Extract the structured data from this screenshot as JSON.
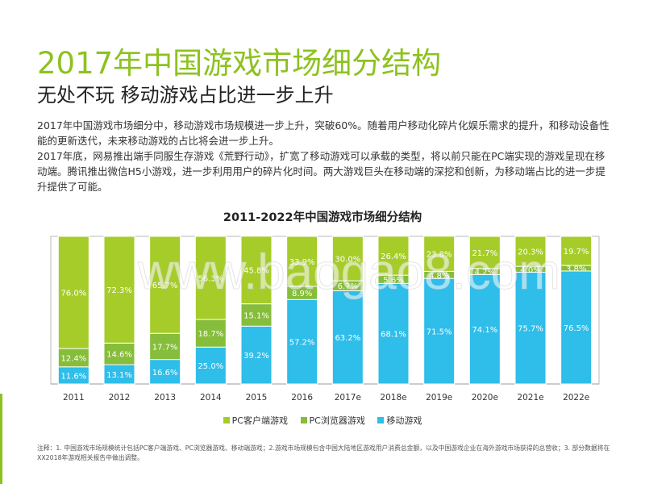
{
  "title": "2017年中国游戏市场细分结构",
  "subtitle": "无处不玩 移动游戏占比进一步上升",
  "paragraph1": "2017年中国游戏市场细分中，移动游戏市场规模进一步上升，突破60%。随着用户移动化碎片化娱乐需求的提升，和移动设备性能的更新迭代，未来移动游戏的占比将会进一步上升。",
  "paragraph2": "2017年底，网易推出端手同服生存游戏《荒野行动》，扩宽了移动游戏可以承载的类型，将以前只能在PC端实现的游戏呈现在移动端。腾讯推出微信H5小游戏，进一步利用用户的碎片化时间。两大游戏巨头在移动端的深挖和创新，为移动端占比的进一步提升提供了可能。",
  "note": "注释：1. 中国游戏市场规模统计包括PC客户端游戏、PC浏览器游戏、移动端游戏；2.游戏市场规模包含中国大陆地区游戏用户消费总金额，以及中国游戏企业在海外游戏市场获得的总营收；3. 部分数据将在XX2018年游戏相关报告中做出调整。",
  "watermark": "www.baogao8.com",
  "colors": {
    "accent": "#8dc21f",
    "pc_client": "#a6cc2a",
    "pc_browser": "#86bd3a",
    "mobile": "#2fbde9"
  },
  "chart_data": {
    "type": "bar",
    "stacked": true,
    "title": "2011-2022年中国游戏市场细分结构",
    "categories": [
      "2011",
      "2012",
      "2013",
      "2014",
      "2015",
      "2016",
      "2017e",
      "2018e",
      "2019e",
      "2020e",
      "2021e",
      "2022e"
    ],
    "series": [
      {
        "name": "移动游戏",
        "values": [
          11.6,
          13.1,
          16.6,
          25.0,
          39.2,
          57.2,
          63.2,
          68.1,
          71.5,
          74.1,
          75.7,
          76.5
        ],
        "labels": [
          "11.6%",
          "13.1%",
          "16.6%",
          "25.0%",
          "39.2%",
          "57.2%",
          "63.2%",
          "68.1%",
          "71.5%",
          "74.1%",
          "75.7%",
          "76.5%"
        ]
      },
      {
        "name": "PC浏览器游戏",
        "values": [
          12.4,
          14.6,
          17.7,
          18.7,
          15.1,
          8.9,
          6.7,
          5.6,
          4.8,
          4.2,
          4.0,
          3.8
        ],
        "labels": [
          "12.4%",
          "14.6%",
          "17.7%",
          "18.7%",
          "15.1%",
          "8.9%",
          "6.7%",
          "5.6%",
          "4.8%",
          "4.2%",
          "4.0%",
          "3.8%"
        ]
      },
      {
        "name": "PC客户端游戏",
        "values": [
          76.0,
          72.3,
          65.7,
          56.3,
          45.8,
          33.9,
          30.0,
          26.4,
          23.8,
          21.7,
          20.3,
          19.7
        ],
        "labels": [
          "76.0%",
          "72.3%",
          "65.7%",
          "56.3%",
          "45.8%",
          "33.9%",
          "30.0%",
          "26.4%",
          "23.8%",
          "21.7%",
          "20.3%",
          "19.7%"
        ]
      }
    ],
    "legend": [
      "PC客户端游戏",
      "PC浏览器游戏",
      "移动游戏"
    ],
    "ylim": [
      0,
      100
    ],
    "xlabel": "",
    "ylabel": ""
  }
}
